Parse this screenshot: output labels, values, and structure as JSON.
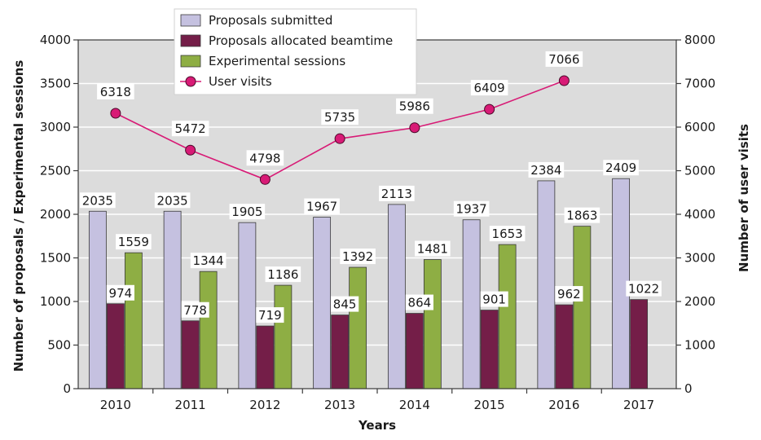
{
  "chart_data": {
    "type": "bar",
    "categories": [
      "2010",
      "2011",
      "2012",
      "2013",
      "2014",
      "2015",
      "2016",
      "2017"
    ],
    "series": [
      {
        "name": "Proposals submitted",
        "axis": "left",
        "color": "#c5c1e0",
        "values": [
          2035,
          2035,
          1905,
          1967,
          2113,
          1937,
          2384,
          2409
        ]
      },
      {
        "name": "Proposals allocated beamtime",
        "axis": "left",
        "color": "#741e48",
        "values": [
          974,
          778,
          719,
          845,
          864,
          901,
          962,
          1022
        ]
      },
      {
        "name": "Experimental sessions",
        "axis": "left",
        "color": "#8eae44",
        "values": [
          1559,
          1344,
          1186,
          1392,
          1481,
          1653,
          1863,
          null
        ]
      },
      {
        "name": "User visits",
        "axis": "right",
        "type": "line",
        "color": "#d81b76",
        "values": [
          6318,
          5472,
          4798,
          5735,
          5986,
          6409,
          7066,
          null
        ]
      }
    ],
    "xlabel": "Years",
    "ylabel": "Number of proposals / Experimental sessions",
    "y2label": "Number of user visits",
    "ylim": [
      0,
      4000
    ],
    "y2lim": [
      0,
      8000
    ],
    "yticks": [
      0,
      500,
      1000,
      1500,
      2000,
      2500,
      3000,
      3500,
      4000
    ],
    "y2ticks": [
      0,
      1000,
      2000,
      3000,
      4000,
      5000,
      6000,
      7000,
      8000
    ],
    "grid": true,
    "legend_position": "top-center"
  }
}
